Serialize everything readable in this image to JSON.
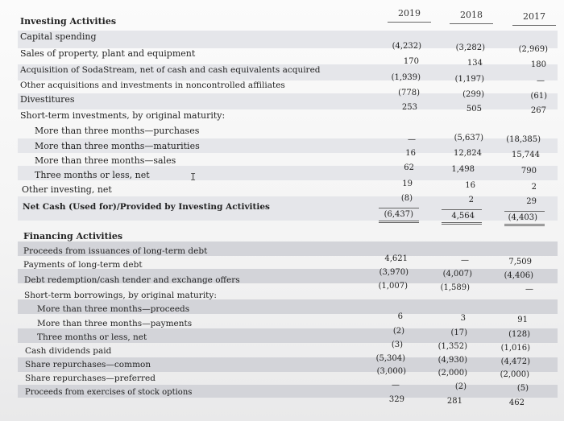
{
  "columns": [
    "2019",
    "2018",
    "2017"
  ],
  "investing": {
    "heading": "Investing Activities",
    "rows": [
      {
        "label": "Capital spending",
        "v2019": "(4,232)",
        "v2018": "(3,282)",
        "v2017": "(2,969)"
      },
      {
        "label": "Sales of property, plant and equipment",
        "v2019": "170",
        "v2018": "134",
        "v2017": "180"
      },
      {
        "label": "Acquisition of SodaStream, net of cash and cash equivalents acquired",
        "v2019": "(1,939)",
        "v2018": "(1,197)",
        "v2017": "—"
      },
      {
        "label": "Other acquisitions and investments in noncontrolled affiliates",
        "v2019": "(778)",
        "v2018": "(299)",
        "v2017": "(61)"
      },
      {
        "label": "Divestitures",
        "v2019": "253",
        "v2018": "505",
        "v2017": "267"
      },
      {
        "label": "Short-term investments, by original maturity:",
        "v2019": "",
        "v2018": "",
        "v2017": ""
      },
      {
        "label": "More than three months—purchases",
        "v2019": "—",
        "v2018": "(5,637)",
        "v2017": "(18,385)"
      },
      {
        "label": "More than three months—maturities",
        "v2019": "16",
        "v2018": "12,824",
        "v2017": "15,744"
      },
      {
        "label": "More than three months—sales",
        "v2019": "62",
        "v2018": "1,498",
        "v2017": "790"
      },
      {
        "label": "Three months or less, net",
        "v2019": "19",
        "v2018": "16",
        "v2017": "2"
      },
      {
        "label": "Other investing, net",
        "v2019": "(8)",
        "v2018": "2",
        "v2017": "29"
      },
      {
        "label": "Net Cash (Used for)/Provided by Investing Activities",
        "v2019": "(6,437)",
        "v2018": "4,564",
        "v2017": "(4,403)"
      }
    ]
  },
  "financing": {
    "heading": "Financing Activities",
    "rows": [
      {
        "label": "Proceeds from issuances of long-term debt",
        "v2019": "4,621",
        "v2018": "—",
        "v2017": "7,509"
      },
      {
        "label": "Payments of long-term debt",
        "v2019": "(3,970)",
        "v2018": "(4,007)",
        "v2017": "(4,406)"
      },
      {
        "label": "Debt redemption/cash tender and exchange offers",
        "v2019": "(1,007)",
        "v2018": "(1,589)",
        "v2017": "—"
      },
      {
        "label": "Short-term borrowings, by original maturity:",
        "v2019": "",
        "v2018": "",
        "v2017": ""
      },
      {
        "label": "More than three months—proceeds",
        "v2019": "6",
        "v2018": "3",
        "v2017": "91"
      },
      {
        "label": "More than three months—payments",
        "v2019": "(2)",
        "v2018": "(17)",
        "v2017": "(128)"
      },
      {
        "label": "Three months or less, net",
        "v2019": "(3)",
        "v2018": "(1,352)",
        "v2017": "(1,016)"
      },
      {
        "label": "Cash dividends paid",
        "v2019": "(5,304)",
        "v2018": "(4,930)",
        "v2017": "(4,472)"
      },
      {
        "label": "Share repurchases—common",
        "v2019": "(3,000)",
        "v2018": "(2,000)",
        "v2017": "(2,000)"
      },
      {
        "label": "Share repurchases—preferred",
        "v2019": "—",
        "v2018": "(2)",
        "v2017": "(5)"
      },
      {
        "label": "Proceeds from exercises of stock options",
        "v2019": "329",
        "v2018": "281",
        "v2017": "462"
      }
    ]
  },
  "cursor_glyph": "I"
}
